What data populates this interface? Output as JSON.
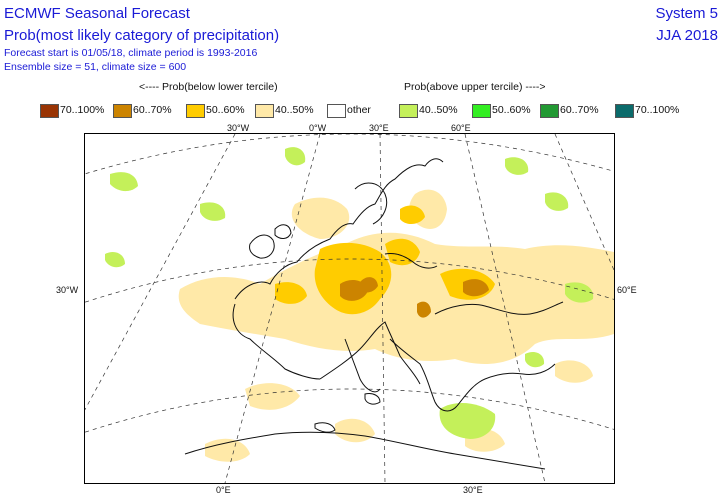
{
  "header": {
    "title": "ECMWF Seasonal Forecast",
    "subtitle": "Prob(most likely category of precipitation)",
    "info_line1": "Forecast start is 01/05/18, climate period is 1993-2016",
    "info_line2": "Ensemble size = 51, climate size = 600",
    "system": "System 5",
    "season": "JJA 2018"
  },
  "legend": {
    "below_heading": "<---- Prob(below lower tercile)",
    "above_heading": "Prob(above upper tercile) ---->",
    "items": [
      {
        "label": "70..100%",
        "color": "#993404"
      },
      {
        "label": "60..70%",
        "color": "#cc8400"
      },
      {
        "label": "50..60%",
        "color": "#ffcc00"
      },
      {
        "label": "40..50%",
        "color": "#ffe9a8"
      },
      {
        "label": "other",
        "color": "#ffffff"
      },
      {
        "label": "40..50%",
        "color": "#c4f05a"
      },
      {
        "label": "50..60%",
        "color": "#33ee22"
      },
      {
        "label": "60..70%",
        "color": "#229933"
      },
      {
        "label": "70..100%",
        "color": "#0b6b6b"
      }
    ]
  },
  "map": {
    "top_lon_labels": [
      "30°W",
      "0°W",
      "30°E",
      "60°E"
    ],
    "bottom_lon_labels": [
      "0°E",
      "30°E"
    ],
    "left_lat_label": "30°W",
    "right_lat_label": "60°E"
  }
}
